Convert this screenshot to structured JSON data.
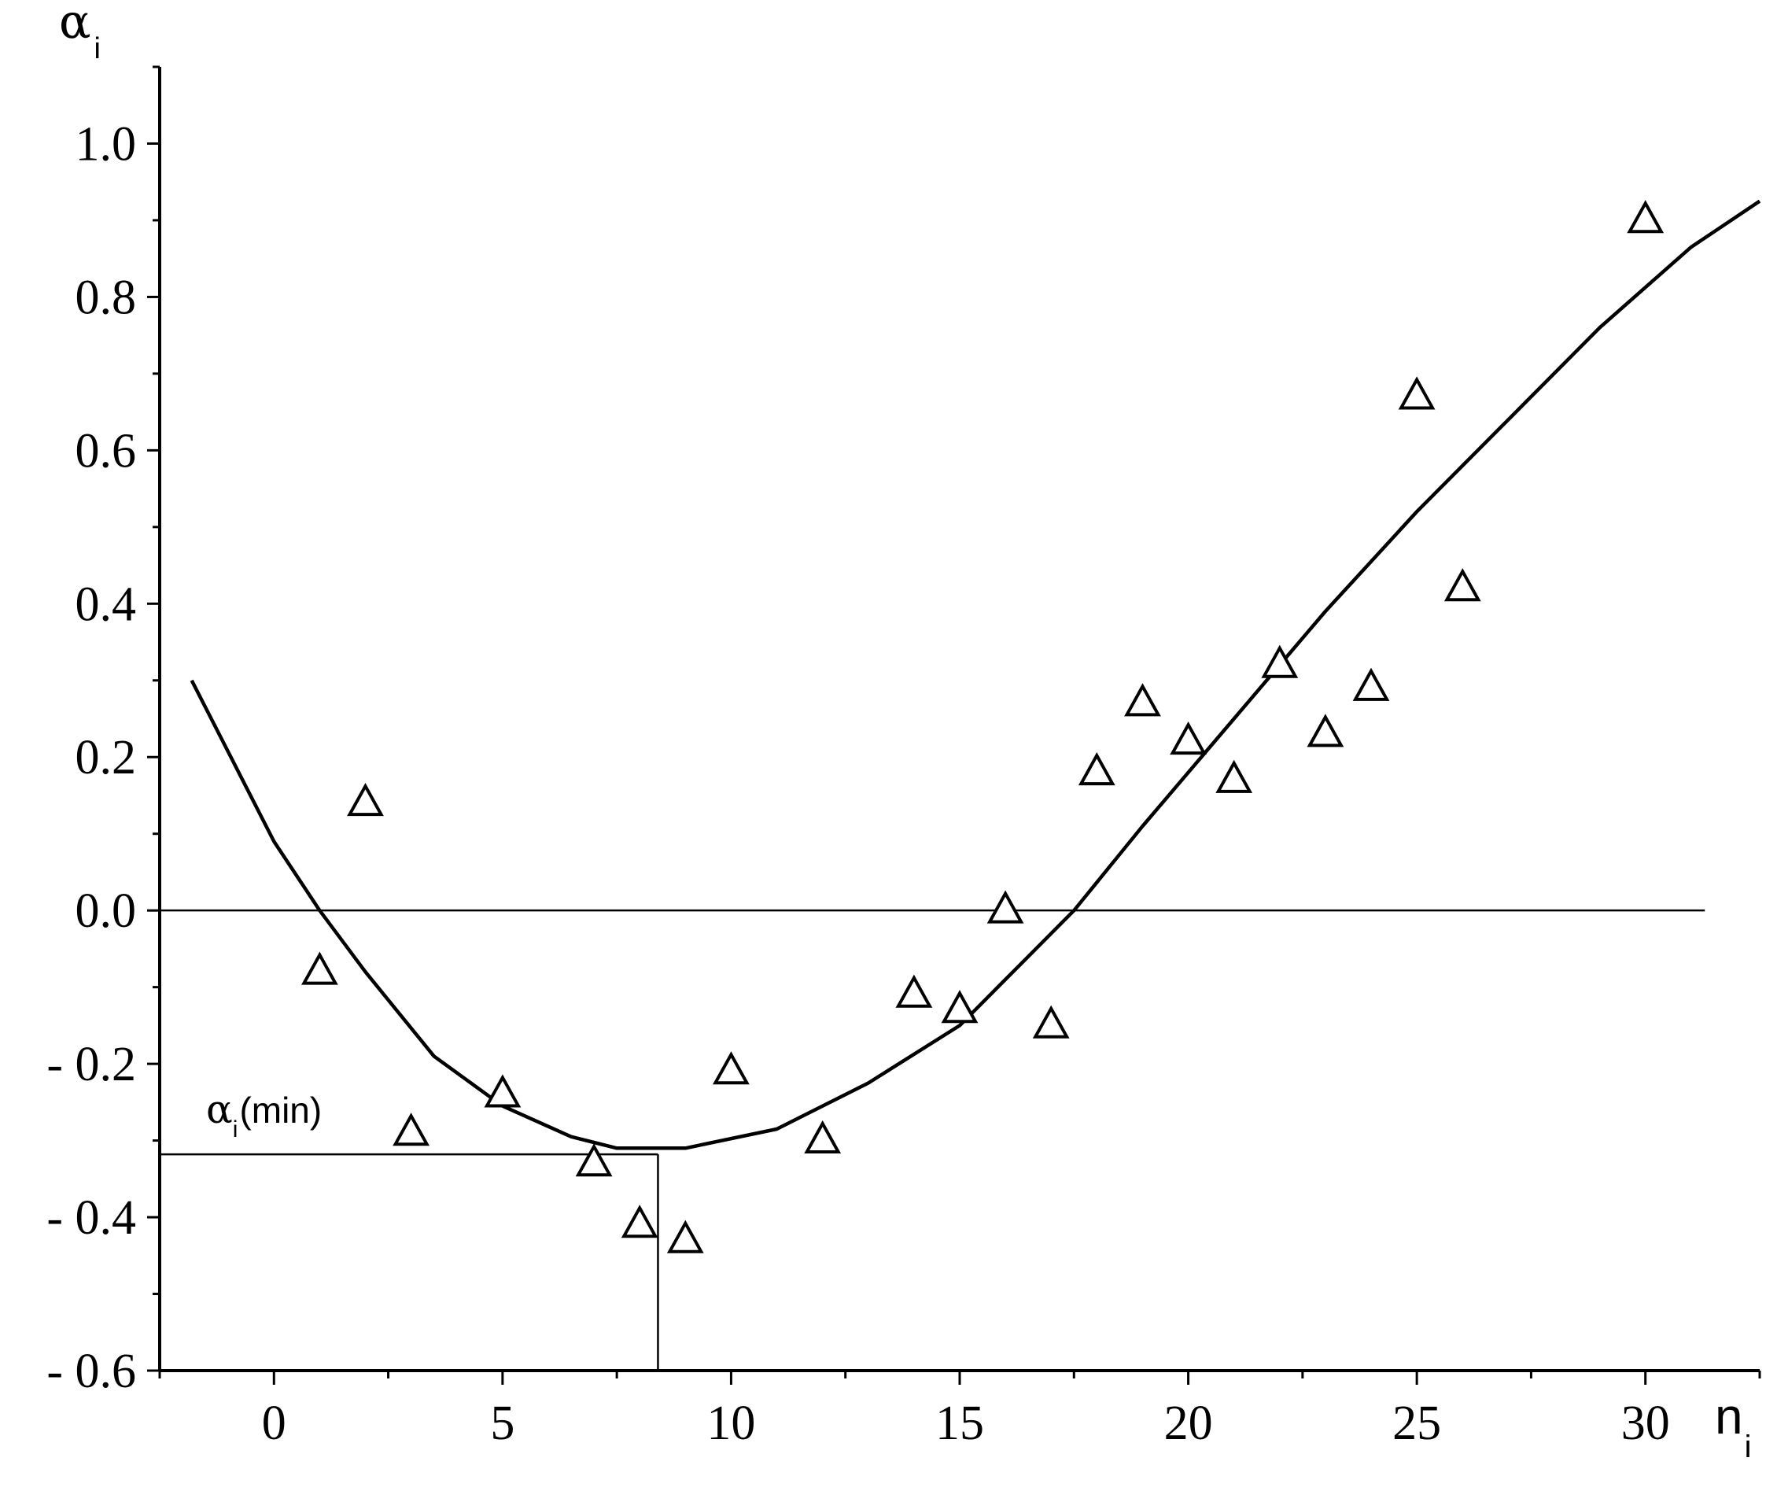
{
  "chart_data": {
    "type": "scatter",
    "xlabel": {
      "main": "n",
      "sub": "i"
    },
    "ylabel": {
      "main": "α",
      "sub": "i"
    },
    "xlim": [
      -2.5,
      32.5
    ],
    "ylim": [
      -0.6,
      1.1
    ],
    "x_ticks": [
      0,
      5,
      10,
      15,
      20,
      25,
      30
    ],
    "x_tick_labels": [
      "0",
      "5",
      "10",
      "15",
      "20",
      "25",
      "30"
    ],
    "y_ticks": [
      -0.6,
      -0.4,
      -0.2,
      0.0,
      0.2,
      0.4,
      0.6,
      0.8,
      1.0
    ],
    "y_tick_labels": [
      "- 0.6",
      "- 0.4",
      "- 0.2",
      "0.0",
      "0.2",
      "0.4",
      "0.6",
      "0.8",
      "1.0"
    ],
    "grid": false,
    "points": [
      {
        "x": 1,
        "y": -0.08
      },
      {
        "x": 2,
        "y": 0.14
      },
      {
        "x": 3,
        "y": -0.29
      },
      {
        "x": 5,
        "y": -0.24
      },
      {
        "x": 7,
        "y": -0.33
      },
      {
        "x": 8,
        "y": -0.41
      },
      {
        "x": 9,
        "y": -0.43
      },
      {
        "x": 10,
        "y": -0.21
      },
      {
        "x": 12,
        "y": -0.3
      },
      {
        "x": 14,
        "y": -0.11
      },
      {
        "x": 15,
        "y": -0.13
      },
      {
        "x": 16,
        "y": 0.0
      },
      {
        "x": 17,
        "y": -0.15
      },
      {
        "x": 18,
        "y": 0.18
      },
      {
        "x": 19,
        "y": 0.27
      },
      {
        "x": 20,
        "y": 0.22
      },
      {
        "x": 21,
        "y": 0.17
      },
      {
        "x": 22,
        "y": 0.32
      },
      {
        "x": 23,
        "y": 0.23
      },
      {
        "x": 24,
        "y": 0.29
      },
      {
        "x": 25,
        "y": 0.67
      },
      {
        "x": 26,
        "y": 0.42
      },
      {
        "x": 30,
        "y": 0.9
      }
    ],
    "fit_curve": [
      {
        "x": -1.8,
        "y": 0.3
      },
      {
        "x": 0,
        "y": 0.09
      },
      {
        "x": 1.0,
        "y": 0.0
      },
      {
        "x": 2.0,
        "y": -0.08
      },
      {
        "x": 3.5,
        "y": -0.19
      },
      {
        "x": 5.0,
        "y": -0.255
      },
      {
        "x": 6.5,
        "y": -0.295
      },
      {
        "x": 7.5,
        "y": -0.31
      },
      {
        "x": 9.0,
        "y": -0.31
      },
      {
        "x": 11.0,
        "y": -0.285
      },
      {
        "x": 13.0,
        "y": -0.225
      },
      {
        "x": 15.0,
        "y": -0.15
      },
      {
        "x": 16.5,
        "y": -0.06
      },
      {
        "x": 17.5,
        "y": 0.0
      },
      {
        "x": 19.0,
        "y": 0.11
      },
      {
        "x": 21.0,
        "y": 0.25
      },
      {
        "x": 23.0,
        "y": 0.39
      },
      {
        "x": 25.0,
        "y": 0.52
      },
      {
        "x": 27.0,
        "y": 0.64
      },
      {
        "x": 29.0,
        "y": 0.76
      },
      {
        "x": 31.0,
        "y": 0.865
      },
      {
        "x": 32.5,
        "y": 0.925
      }
    ],
    "zero_line": {
      "y": 0.0,
      "x_end": 31.3
    },
    "minimum": {
      "x": 8.4,
      "y": -0.318,
      "label_main": "α",
      "label_sub": "i",
      "label_suffix": "(min)"
    }
  }
}
